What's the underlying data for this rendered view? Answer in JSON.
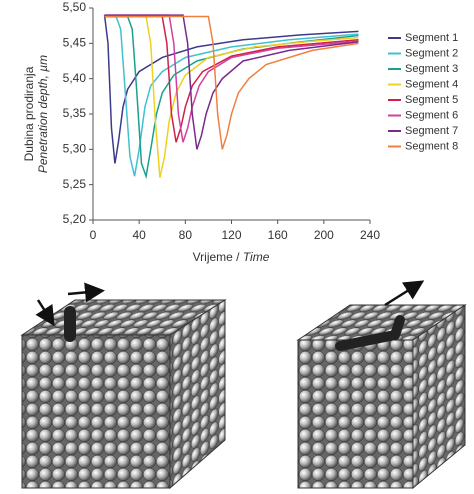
{
  "chart_data": {
    "type": "line",
    "y_label": [
      "Dubina prodiranja",
      "Penetration depth, µm"
    ],
    "x_label": [
      "Vrijeme / ",
      "Time"
    ],
    "xlim": [
      0,
      240
    ],
    "xticks": [
      0,
      40,
      80,
      120,
      160,
      200,
      240
    ],
    "ylim": [
      5.2,
      5.5
    ],
    "yticks": [
      {
        "value": 5.2,
        "label": "5,20"
      },
      {
        "value": 5.25,
        "label": "5,25"
      },
      {
        "value": 5.3,
        "label": "5,30"
      },
      {
        "value": 5.35,
        "label": "5,35"
      },
      {
        "value": 5.4,
        "label": "5,40"
      },
      {
        "value": 5.45,
        "label": "5,45"
      },
      {
        "value": 5.5,
        "label": "5,50"
      }
    ],
    "grid": false,
    "legend": "right",
    "series": [
      {
        "name": "Segment 1",
        "color": "#3d3a8c",
        "x": [
          10,
          13,
          16,
          19,
          22,
          26,
          30,
          40,
          60,
          90,
          130,
          180,
          230
        ],
        "values": [
          5.49,
          5.45,
          5.33,
          5.28,
          5.31,
          5.36,
          5.385,
          5.41,
          5.43,
          5.445,
          5.455,
          5.462,
          5.467
        ]
      },
      {
        "name": "Segment 2",
        "color": "#3fc1d3",
        "x": [
          10,
          20,
          24,
          28,
          32,
          36,
          40,
          45,
          50,
          60,
          80,
          120,
          170,
          230
        ],
        "values": [
          5.488,
          5.488,
          5.47,
          5.38,
          5.29,
          5.262,
          5.3,
          5.36,
          5.39,
          5.41,
          5.43,
          5.445,
          5.455,
          5.463
        ]
      },
      {
        "name": "Segment 3",
        "color": "#1aa08f",
        "x": [
          10,
          30,
          34,
          38,
          42,
          46,
          50,
          55,
          60,
          70,
          90,
          130,
          180,
          230
        ],
        "values": [
          5.488,
          5.488,
          5.47,
          5.38,
          5.28,
          5.262,
          5.3,
          5.35,
          5.38,
          5.405,
          5.425,
          5.442,
          5.452,
          5.461
        ]
      },
      {
        "name": "Segment 4",
        "color": "#f0d020",
        "x": [
          10,
          46,
          50,
          54,
          58,
          62,
          66,
          72,
          80,
          100,
          140,
          190,
          230
        ],
        "values": [
          5.488,
          5.488,
          5.45,
          5.34,
          5.26,
          5.29,
          5.34,
          5.38,
          5.405,
          5.43,
          5.445,
          5.453,
          5.458
        ]
      },
      {
        "name": "Segment 5",
        "color": "#d0204a",
        "x": [
          10,
          60,
          64,
          68,
          72,
          76,
          80,
          86,
          95,
          120,
          160,
          230
        ],
        "values": [
          5.488,
          5.488,
          5.45,
          5.35,
          5.31,
          5.33,
          5.36,
          5.39,
          5.41,
          5.432,
          5.445,
          5.455
        ]
      },
      {
        "name": "Segment 6",
        "color": "#d040a0",
        "x": [
          10,
          66,
          70,
          74,
          78,
          82,
          86,
          92,
          100,
          120,
          160,
          230
        ],
        "values": [
          5.49,
          5.49,
          5.45,
          5.35,
          5.31,
          5.33,
          5.36,
          5.39,
          5.41,
          5.43,
          5.443,
          5.453
        ]
      },
      {
        "name": "Segment 7",
        "color": "#7a2a8a",
        "x": [
          10,
          78,
          82,
          86,
          90,
          94,
          98,
          104,
          112,
          130,
          170,
          230
        ],
        "values": [
          5.49,
          5.49,
          5.45,
          5.35,
          5.3,
          5.32,
          5.35,
          5.38,
          5.4,
          5.425,
          5.44,
          5.452
        ]
      },
      {
        "name": "Segment 8",
        "color": "#f08040",
        "x": [
          10,
          100,
          104,
          108,
          112,
          116,
          120,
          126,
          135,
          150,
          190,
          230
        ],
        "values": [
          5.488,
          5.488,
          5.45,
          5.35,
          5.3,
          5.32,
          5.35,
          5.38,
          5.4,
          5.42,
          5.44,
          5.45
        ]
      }
    ]
  }
}
